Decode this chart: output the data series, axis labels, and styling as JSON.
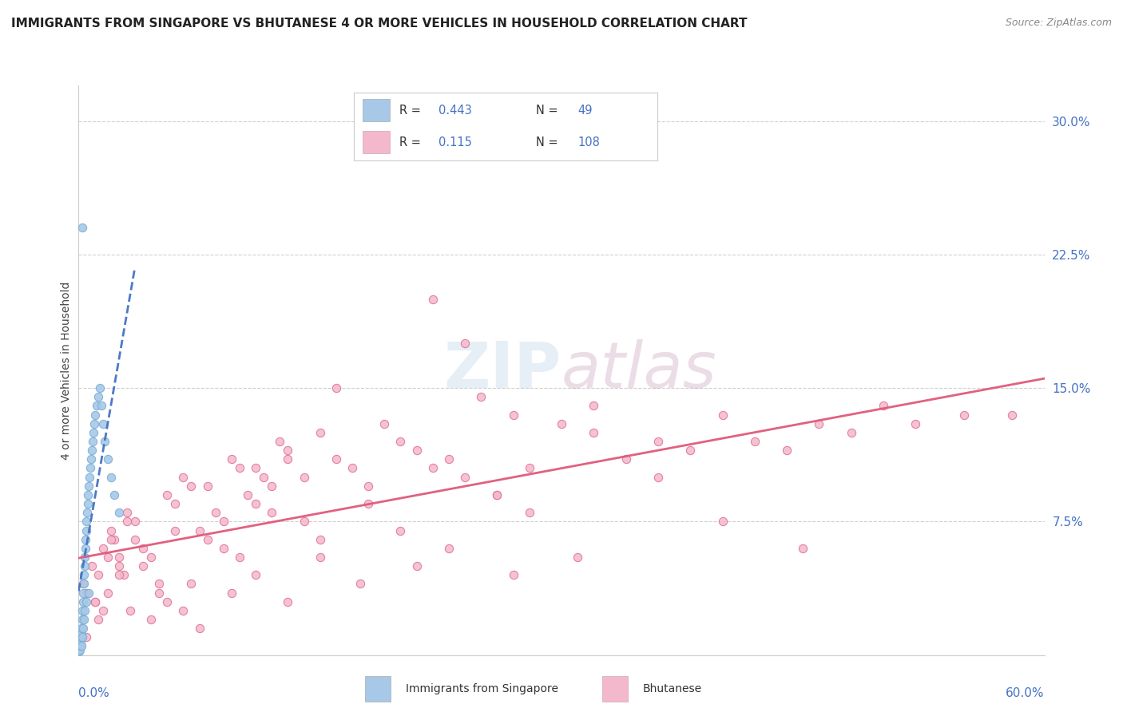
{
  "title": "IMMIGRANTS FROM SINGAPORE VS BHUTANESE 4 OR MORE VEHICLES IN HOUSEHOLD CORRELATION CHART",
  "source": "Source: ZipAtlas.com",
  "ylabel": "4 or more Vehicles in Household",
  "xlim": [
    0.0,
    60.0
  ],
  "ylim": [
    0.0,
    32.0
  ],
  "singapore_R": 0.443,
  "singapore_N": 49,
  "bhutanese_R": 0.115,
  "bhutanese_N": 108,
  "singapore_color": "#a8c8e8",
  "singapore_edge_color": "#7aafd4",
  "singapore_line_color": "#4472c4",
  "bhutanese_color": "#f4b8cc",
  "bhutanese_edge_color": "#e07090",
  "bhutanese_line_color": "#e05878",
  "grid_color": "#d0d0d0",
  "right_tick_color": "#4472c4",
  "watermark_color": "#c8ddf0",
  "watermark_color2": "#d0a0b8",
  "legend_blue_label": "Immigrants from Singapore",
  "legend_pink_label": "Bhutanese",
  "sg_x": [
    0.05,
    0.08,
    0.1,
    0.12,
    0.15,
    0.18,
    0.2,
    0.22,
    0.25,
    0.28,
    0.3,
    0.32,
    0.35,
    0.38,
    0.4,
    0.42,
    0.45,
    0.48,
    0.5,
    0.52,
    0.55,
    0.58,
    0.6,
    0.65,
    0.7,
    0.75,
    0.8,
    0.85,
    0.9,
    0.95,
    1.0,
    1.1,
    1.2,
    1.3,
    1.4,
    1.5,
    1.6,
    1.8,
    2.0,
    2.2,
    2.5,
    0.18,
    0.22,
    0.3,
    0.35,
    0.4,
    0.5,
    0.6,
    0.25
  ],
  "sg_y": [
    0.2,
    0.3,
    0.5,
    0.8,
    1.0,
    1.2,
    1.5,
    2.0,
    2.5,
    3.0,
    3.5,
    4.0,
    4.5,
    5.0,
    5.5,
    6.0,
    6.5,
    7.0,
    7.5,
    8.0,
    8.5,
    9.0,
    9.5,
    10.0,
    10.5,
    11.0,
    11.5,
    12.0,
    12.5,
    13.0,
    13.5,
    14.0,
    14.5,
    15.0,
    14.0,
    13.0,
    12.0,
    11.0,
    10.0,
    9.0,
    8.0,
    0.5,
    1.0,
    1.5,
    2.0,
    2.5,
    3.0,
    3.5,
    24.0
  ],
  "bh_x": [
    0.3,
    0.5,
    0.8,
    1.0,
    1.2,
    1.5,
    1.8,
    2.0,
    2.2,
    2.5,
    2.8,
    3.0,
    3.5,
    4.0,
    4.5,
    5.0,
    5.5,
    6.0,
    6.5,
    7.0,
    7.5,
    8.0,
    8.5,
    9.0,
    9.5,
    10.0,
    10.5,
    11.0,
    11.5,
    12.0,
    12.5,
    13.0,
    14.0,
    15.0,
    16.0,
    17.0,
    18.0,
    19.0,
    20.0,
    21.0,
    22.0,
    23.0,
    24.0,
    25.0,
    26.0,
    27.0,
    28.0,
    30.0,
    32.0,
    34.0,
    36.0,
    38.0,
    40.0,
    42.0,
    44.0,
    46.0,
    48.0,
    50.0,
    52.0,
    55.0,
    58.0,
    1.0,
    1.5,
    2.0,
    2.5,
    3.0,
    3.5,
    4.0,
    5.0,
    6.0,
    7.0,
    8.0,
    9.0,
    10.0,
    11.0,
    12.0,
    13.0,
    14.0,
    15.0,
    16.0,
    18.0,
    20.0,
    22.0,
    24.0,
    26.0,
    28.0,
    32.0,
    36.0,
    40.0,
    45.0,
    0.5,
    1.2,
    1.8,
    2.5,
    3.2,
    4.5,
    5.5,
    6.5,
    7.5,
    9.5,
    11.0,
    13.0,
    15.0,
    17.5,
    21.0,
    23.0,
    27.0,
    31.0
  ],
  "bh_y": [
    4.0,
    3.5,
    5.0,
    3.0,
    4.5,
    6.0,
    5.5,
    7.0,
    6.5,
    5.0,
    4.5,
    8.0,
    7.5,
    6.0,
    5.5,
    4.0,
    9.0,
    8.5,
    10.0,
    9.5,
    7.0,
    6.5,
    8.0,
    7.5,
    11.0,
    10.5,
    9.0,
    8.5,
    10.0,
    9.5,
    12.0,
    11.5,
    10.0,
    12.5,
    11.0,
    10.5,
    9.5,
    13.0,
    12.0,
    11.5,
    10.5,
    11.0,
    10.0,
    14.5,
    9.0,
    13.5,
    10.5,
    13.0,
    12.5,
    11.0,
    12.0,
    11.5,
    13.5,
    12.0,
    11.5,
    13.0,
    12.5,
    14.0,
    13.0,
    13.5,
    13.5,
    3.0,
    2.5,
    6.5,
    5.5,
    7.5,
    6.5,
    5.0,
    3.5,
    7.0,
    4.0,
    9.5,
    6.0,
    5.5,
    10.5,
    8.0,
    11.0,
    7.5,
    6.5,
    15.0,
    8.5,
    7.0,
    20.0,
    17.5,
    9.0,
    8.0,
    14.0,
    10.0,
    7.5,
    6.0,
    1.0,
    2.0,
    3.5,
    4.5,
    2.5,
    2.0,
    3.0,
    2.5,
    1.5,
    3.5,
    4.5,
    3.0,
    5.5,
    4.0,
    5.0,
    6.0,
    4.5,
    5.5
  ]
}
